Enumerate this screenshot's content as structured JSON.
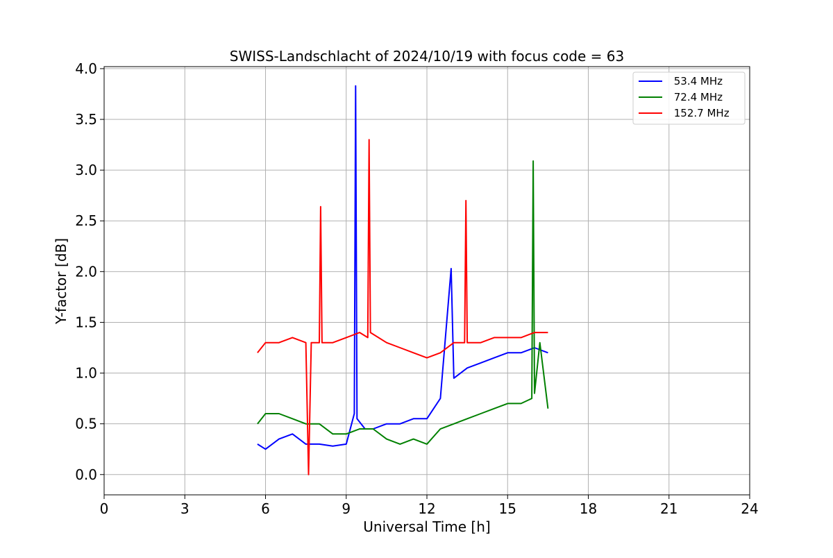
{
  "chart_data": {
    "type": "line",
    "title": "SWISS-Landschlacht of 2024/10/19 with focus code = 63",
    "xlabel": "Universal Time [h]",
    "ylabel": "Y-factor [dB]",
    "xlim": [
      0,
      24
    ],
    "ylim": [
      -0.2,
      4.02
    ],
    "xticks": [
      0,
      3,
      6,
      9,
      12,
      15,
      18,
      21,
      24
    ],
    "xtick_labels": [
      "0",
      "3",
      "6",
      "9",
      "12",
      "15",
      "18",
      "21",
      "24"
    ],
    "yticks": [
      0.0,
      0.5,
      1.0,
      1.5,
      2.0,
      2.5,
      3.0,
      3.5,
      4.0
    ],
    "ytick_labels": [
      "0.0",
      "0.5",
      "1.0",
      "1.5",
      "2.0",
      "2.5",
      "3.0",
      "3.5",
      "4.0"
    ],
    "grid": true,
    "legend_position": "top-right",
    "series": [
      {
        "name": " 53.4 MHz",
        "color": "#0000ff",
        "x": [
          5.7,
          6.0,
          6.5,
          7.0,
          7.5,
          8.0,
          8.5,
          9.0,
          9.3,
          9.35,
          9.4,
          9.7,
          10.0,
          10.5,
          11.0,
          11.5,
          12.0,
          12.5,
          12.9,
          13.0,
          13.5,
          14.0,
          14.5,
          15.0,
          15.5,
          16.0,
          16.5
        ],
        "values": [
          0.3,
          0.25,
          0.35,
          0.4,
          0.3,
          0.3,
          0.28,
          0.3,
          0.6,
          3.83,
          0.55,
          0.45,
          0.45,
          0.5,
          0.5,
          0.55,
          0.55,
          0.75,
          2.03,
          0.95,
          1.05,
          1.1,
          1.15,
          1.2,
          1.2,
          1.25,
          1.2
        ]
      },
      {
        "name": " 72.4 MHz",
        "color": "#008000",
        "x": [
          5.7,
          6.0,
          6.5,
          7.0,
          7.5,
          8.0,
          8.5,
          9.0,
          9.5,
          10.0,
          10.5,
          11.0,
          11.5,
          12.0,
          12.5,
          13.0,
          13.5,
          14.0,
          14.5,
          15.0,
          15.5,
          15.9,
          15.95,
          16.0,
          16.2,
          16.5
        ],
        "values": [
          0.5,
          0.6,
          0.6,
          0.55,
          0.5,
          0.5,
          0.4,
          0.4,
          0.45,
          0.45,
          0.35,
          0.3,
          0.35,
          0.3,
          0.45,
          0.5,
          0.55,
          0.6,
          0.65,
          0.7,
          0.7,
          0.75,
          3.09,
          0.8,
          1.3,
          0.65
        ]
      },
      {
        "name": " 152.7 MHz",
        "color": "#ff0000",
        "x": [
          5.7,
          6.0,
          6.5,
          7.0,
          7.5,
          7.6,
          7.7,
          8.0,
          8.05,
          8.1,
          8.5,
          9.0,
          9.5,
          9.8,
          9.85,
          9.9,
          10.5,
          11.0,
          11.5,
          12.0,
          12.5,
          13.0,
          13.4,
          13.45,
          13.5,
          14.0,
          14.5,
          15.0,
          15.5,
          16.0,
          16.5
        ],
        "values": [
          1.2,
          1.3,
          1.3,
          1.35,
          1.3,
          0.0,
          1.3,
          1.3,
          2.64,
          1.3,
          1.3,
          1.35,
          1.4,
          1.35,
          3.3,
          1.4,
          1.3,
          1.25,
          1.2,
          1.15,
          1.2,
          1.3,
          1.3,
          2.7,
          1.3,
          1.3,
          1.35,
          1.35,
          1.35,
          1.4,
          1.4
        ]
      }
    ]
  }
}
